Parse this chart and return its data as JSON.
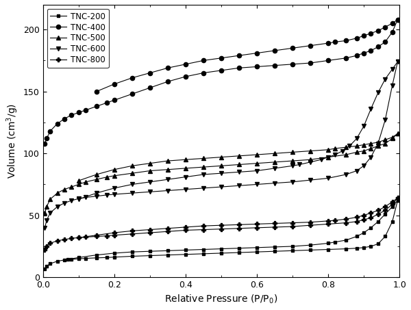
{
  "title": "",
  "xlabel": "Relative Pressure (P/P$_0$)",
  "ylabel": "Volume (cm$^3$/g)",
  "xlim": [
    0.0,
    1.0
  ],
  "ylim": [
    0,
    220
  ],
  "yticks": [
    0,
    50,
    100,
    150,
    200
  ],
  "xticks": [
    0.0,
    0.2,
    0.4,
    0.6,
    0.8,
    1.0
  ],
  "series": [
    {
      "label": "TNC-200",
      "marker": "s",
      "color": "black",
      "adsorption_x": [
        0.005,
        0.01,
        0.02,
        0.04,
        0.06,
        0.08,
        0.1,
        0.12,
        0.15,
        0.18,
        0.2,
        0.25,
        0.3,
        0.35,
        0.4,
        0.45,
        0.5,
        0.55,
        0.6,
        0.65,
        0.7,
        0.75,
        0.8,
        0.85,
        0.88,
        0.9,
        0.92,
        0.94,
        0.96,
        0.98,
        0.995
      ],
      "adsorption_y": [
        7,
        9,
        11,
        13,
        14,
        14.5,
        15,
        15.3,
        15.7,
        16,
        16.3,
        17,
        17.5,
        18,
        18.5,
        19,
        19.5,
        20,
        20.5,
        21,
        21.5,
        22,
        22.5,
        23,
        23.5,
        24,
        25,
        27,
        33,
        45,
        62
      ],
      "desorption_x": [
        0.995,
        0.98,
        0.96,
        0.94,
        0.92,
        0.9,
        0.88,
        0.85,
        0.82,
        0.8,
        0.75,
        0.7,
        0.65,
        0.6,
        0.55,
        0.5,
        0.45,
        0.4,
        0.35,
        0.3,
        0.25,
        0.2,
        0.15,
        0.1,
        0.07
      ],
      "desorption_y": [
        62,
        57,
        51,
        45,
        40,
        36,
        33,
        30,
        28.5,
        27.5,
        26,
        25,
        24.5,
        24,
        23.5,
        23,
        22.5,
        22,
        21.5,
        21,
        20.5,
        19.5,
        18,
        16,
        14.5
      ]
    },
    {
      "label": "TNC-400",
      "marker": "o",
      "color": "black",
      "adsorption_x": [
        0.005,
        0.01,
        0.02,
        0.04,
        0.06,
        0.08,
        0.1,
        0.12,
        0.15,
        0.18,
        0.2,
        0.25,
        0.3,
        0.35,
        0.4,
        0.45,
        0.5,
        0.55,
        0.6,
        0.65,
        0.7,
        0.75,
        0.8,
        0.85,
        0.88,
        0.9,
        0.92,
        0.94,
        0.96,
        0.98,
        0.995
      ],
      "adsorption_y": [
        108,
        112,
        118,
        124,
        128,
        131,
        133,
        135,
        138,
        141,
        143,
        148,
        153,
        158,
        162,
        165,
        167,
        169,
        170,
        171,
        172,
        173,
        175,
        177,
        179,
        181,
        183,
        186,
        190,
        198,
        208
      ],
      "desorption_x": [
        0.995,
        0.98,
        0.96,
        0.94,
        0.92,
        0.9,
        0.88,
        0.85,
        0.82,
        0.8,
        0.75,
        0.7,
        0.65,
        0.6,
        0.55,
        0.5,
        0.45,
        0.4,
        0.35,
        0.3,
        0.25,
        0.2,
        0.15
      ],
      "desorption_y": [
        208,
        205,
        202,
        199,
        197,
        195,
        193,
        191,
        190,
        189,
        187,
        185,
        183,
        181,
        179,
        177,
        175,
        172,
        169,
        165,
        161,
        156,
        150
      ]
    },
    {
      "label": "TNC-500",
      "marker": "^",
      "color": "black",
      "adsorption_x": [
        0.005,
        0.01,
        0.02,
        0.04,
        0.06,
        0.08,
        0.1,
        0.12,
        0.15,
        0.18,
        0.2,
        0.25,
        0.3,
        0.35,
        0.4,
        0.45,
        0.5,
        0.55,
        0.6,
        0.65,
        0.7,
        0.75,
        0.8,
        0.85,
        0.88,
        0.9,
        0.92,
        0.94,
        0.96,
        0.98,
        0.995
      ],
      "adsorption_y": [
        52,
        57,
        63,
        68,
        71,
        73,
        75,
        77,
        79,
        81,
        82,
        84,
        86,
        87,
        88,
        89,
        90,
        91,
        92,
        93,
        94,
        95,
        97,
        99,
        101,
        102,
        104,
        106,
        108,
        112,
        116
      ],
      "desorption_x": [
        0.995,
        0.98,
        0.96,
        0.94,
        0.92,
        0.9,
        0.88,
        0.85,
        0.82,
        0.8,
        0.75,
        0.7,
        0.65,
        0.6,
        0.55,
        0.5,
        0.45,
        0.4,
        0.35,
        0.3,
        0.25,
        0.2,
        0.15,
        0.1
      ],
      "desorption_y": [
        116,
        113,
        111,
        109,
        108,
        107,
        106,
        105,
        104,
        103,
        102,
        101,
        100,
        99,
        98,
        97,
        96,
        95,
        94,
        92,
        90,
        87,
        83,
        78
      ]
    },
    {
      "label": "TNC-600",
      "marker": "v",
      "color": "black",
      "adsorption_x": [
        0.005,
        0.01,
        0.02,
        0.04,
        0.06,
        0.08,
        0.1,
        0.12,
        0.15,
        0.18,
        0.2,
        0.25,
        0.3,
        0.35,
        0.4,
        0.45,
        0.5,
        0.55,
        0.6,
        0.65,
        0.7,
        0.75,
        0.8,
        0.85,
        0.88,
        0.9,
        0.92,
        0.94,
        0.96,
        0.98,
        0.995
      ],
      "adsorption_y": [
        40,
        46,
        52,
        57,
        60,
        62,
        63.5,
        64.5,
        65.5,
        66.5,
        67,
        68,
        69,
        70,
        71,
        72,
        73,
        74,
        75,
        76,
        77,
        78.5,
        80,
        83,
        86,
        90,
        97,
        108,
        127,
        155,
        174
      ],
      "desorption_x": [
        0.995,
        0.98,
        0.96,
        0.94,
        0.92,
        0.9,
        0.88,
        0.86,
        0.84,
        0.82,
        0.8,
        0.78,
        0.75,
        0.72,
        0.7,
        0.65,
        0.6,
        0.55,
        0.5,
        0.45,
        0.4,
        0.35,
        0.3,
        0.25,
        0.2,
        0.15,
        0.1
      ],
      "desorption_y": [
        174,
        168,
        160,
        149,
        136,
        122,
        112,
        106,
        102,
        99,
        97,
        95,
        93,
        91,
        90,
        88,
        86,
        85,
        84,
        83,
        81,
        79,
        77,
        75,
        72,
        68,
        63
      ]
    },
    {
      "label": "TNC-800",
      "marker": "P",
      "color": "black",
      "adsorption_x": [
        0.005,
        0.01,
        0.02,
        0.04,
        0.06,
        0.08,
        0.1,
        0.12,
        0.15,
        0.18,
        0.2,
        0.25,
        0.3,
        0.35,
        0.4,
        0.45,
        0.5,
        0.55,
        0.6,
        0.65,
        0.7,
        0.75,
        0.8,
        0.85,
        0.88,
        0.9,
        0.92,
        0.94,
        0.96,
        0.98,
        0.995
      ],
      "adsorption_y": [
        22,
        25,
        27.5,
        29.5,
        30.5,
        31.5,
        32,
        32.5,
        33,
        33.5,
        34,
        35,
        36,
        37,
        38,
        38.5,
        39,
        39.5,
        40,
        40.5,
        41,
        42,
        43,
        44,
        45,
        46.5,
        48,
        51,
        54,
        59,
        64
      ],
      "desorption_x": [
        0.995,
        0.98,
        0.96,
        0.94,
        0.92,
        0.9,
        0.88,
        0.85,
        0.82,
        0.8,
        0.75,
        0.7,
        0.65,
        0.6,
        0.55,
        0.5,
        0.45,
        0.4,
        0.35,
        0.3,
        0.25,
        0.2,
        0.15,
        0.1
      ],
      "desorption_y": [
        64,
        61,
        57,
        54,
        52,
        50,
        48.5,
        47,
        46,
        45.5,
        44.5,
        44,
        43.5,
        43,
        42.5,
        42,
        41.5,
        40.5,
        39.5,
        38.5,
        37.5,
        36,
        34,
        32
      ]
    }
  ]
}
